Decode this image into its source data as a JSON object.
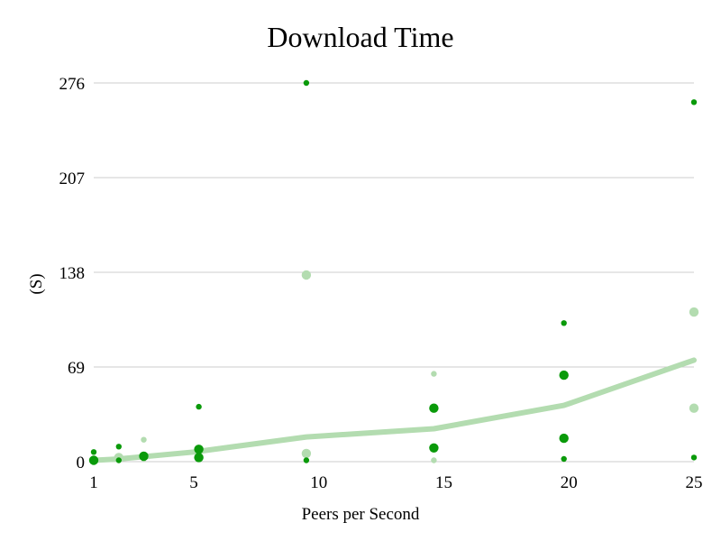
{
  "chart_data": {
    "type": "scatter",
    "title": "Download Time",
    "xlabel": "Peers per Second",
    "ylabel": "(S)",
    "xlim": [
      1,
      25
    ],
    "ylim": [
      0,
      276
    ],
    "x_ticks": [
      "1",
      "5",
      "10",
      "15",
      "20",
      "25"
    ],
    "x_tick_values": [
      1,
      5,
      10,
      15,
      20,
      25
    ],
    "y_ticks": [
      "0",
      "69",
      "138",
      "207",
      "276"
    ],
    "y_tick_values": [
      0,
      69,
      138,
      207,
      276
    ],
    "grid": true,
    "colors": {
      "dark_points": "#0a9a0a",
      "light_points": "#b3dcb0",
      "trend_line": "#b3dcb0"
    },
    "series": [
      {
        "style": "dark",
        "points": [
          {
            "x": 1.0,
            "y": 7,
            "size": "small"
          },
          {
            "x": 1.0,
            "y": 1,
            "size": "large"
          },
          {
            "x": 1.0,
            "y": 2,
            "size": "small"
          },
          {
            "x": 2.0,
            "y": 11,
            "size": "small"
          },
          {
            "x": 2.0,
            "y": 1,
            "size": "small"
          },
          {
            "x": 3.0,
            "y": 4,
            "size": "large"
          },
          {
            "x": 5.2,
            "y": 40,
            "size": "small"
          },
          {
            "x": 5.2,
            "y": 9,
            "size": "large"
          },
          {
            "x": 5.2,
            "y": 3,
            "size": "large"
          },
          {
            "x": 9.5,
            "y": 276,
            "size": "small"
          },
          {
            "x": 9.5,
            "y": 1,
            "size": "small"
          },
          {
            "x": 14.6,
            "y": 39,
            "size": "large"
          },
          {
            "x": 14.6,
            "y": 10,
            "size": "large"
          },
          {
            "x": 19.8,
            "y": 101,
            "size": "small"
          },
          {
            "x": 19.8,
            "y": 63,
            "size": "large"
          },
          {
            "x": 19.8,
            "y": 17,
            "size": "large"
          },
          {
            "x": 19.8,
            "y": 2,
            "size": "small"
          },
          {
            "x": 25.0,
            "y": 262,
            "size": "small"
          },
          {
            "x": 25.0,
            "y": 3,
            "size": "small"
          }
        ]
      },
      {
        "style": "light",
        "points": [
          {
            "x": 2.0,
            "y": 3,
            "size": "large"
          },
          {
            "x": 3.0,
            "y": 16,
            "size": "small"
          },
          {
            "x": 3.0,
            "y": 2,
            "size": "small"
          },
          {
            "x": 9.5,
            "y": 136,
            "size": "large"
          },
          {
            "x": 9.5,
            "y": 6,
            "size": "large"
          },
          {
            "x": 14.6,
            "y": 64,
            "size": "small"
          },
          {
            "x": 14.6,
            "y": 1,
            "size": "small"
          },
          {
            "x": 25.0,
            "y": 109,
            "size": "large"
          },
          {
            "x": 25.0,
            "y": 39,
            "size": "large"
          }
        ]
      },
      {
        "style": "trend",
        "points": [
          {
            "x": 1,
            "y": 1
          },
          {
            "x": 2,
            "y": 2
          },
          {
            "x": 5,
            "y": 7
          },
          {
            "x": 9.5,
            "y": 18
          },
          {
            "x": 14.6,
            "y": 24
          },
          {
            "x": 19.8,
            "y": 41
          },
          {
            "x": 25,
            "y": 74
          }
        ]
      }
    ]
  }
}
